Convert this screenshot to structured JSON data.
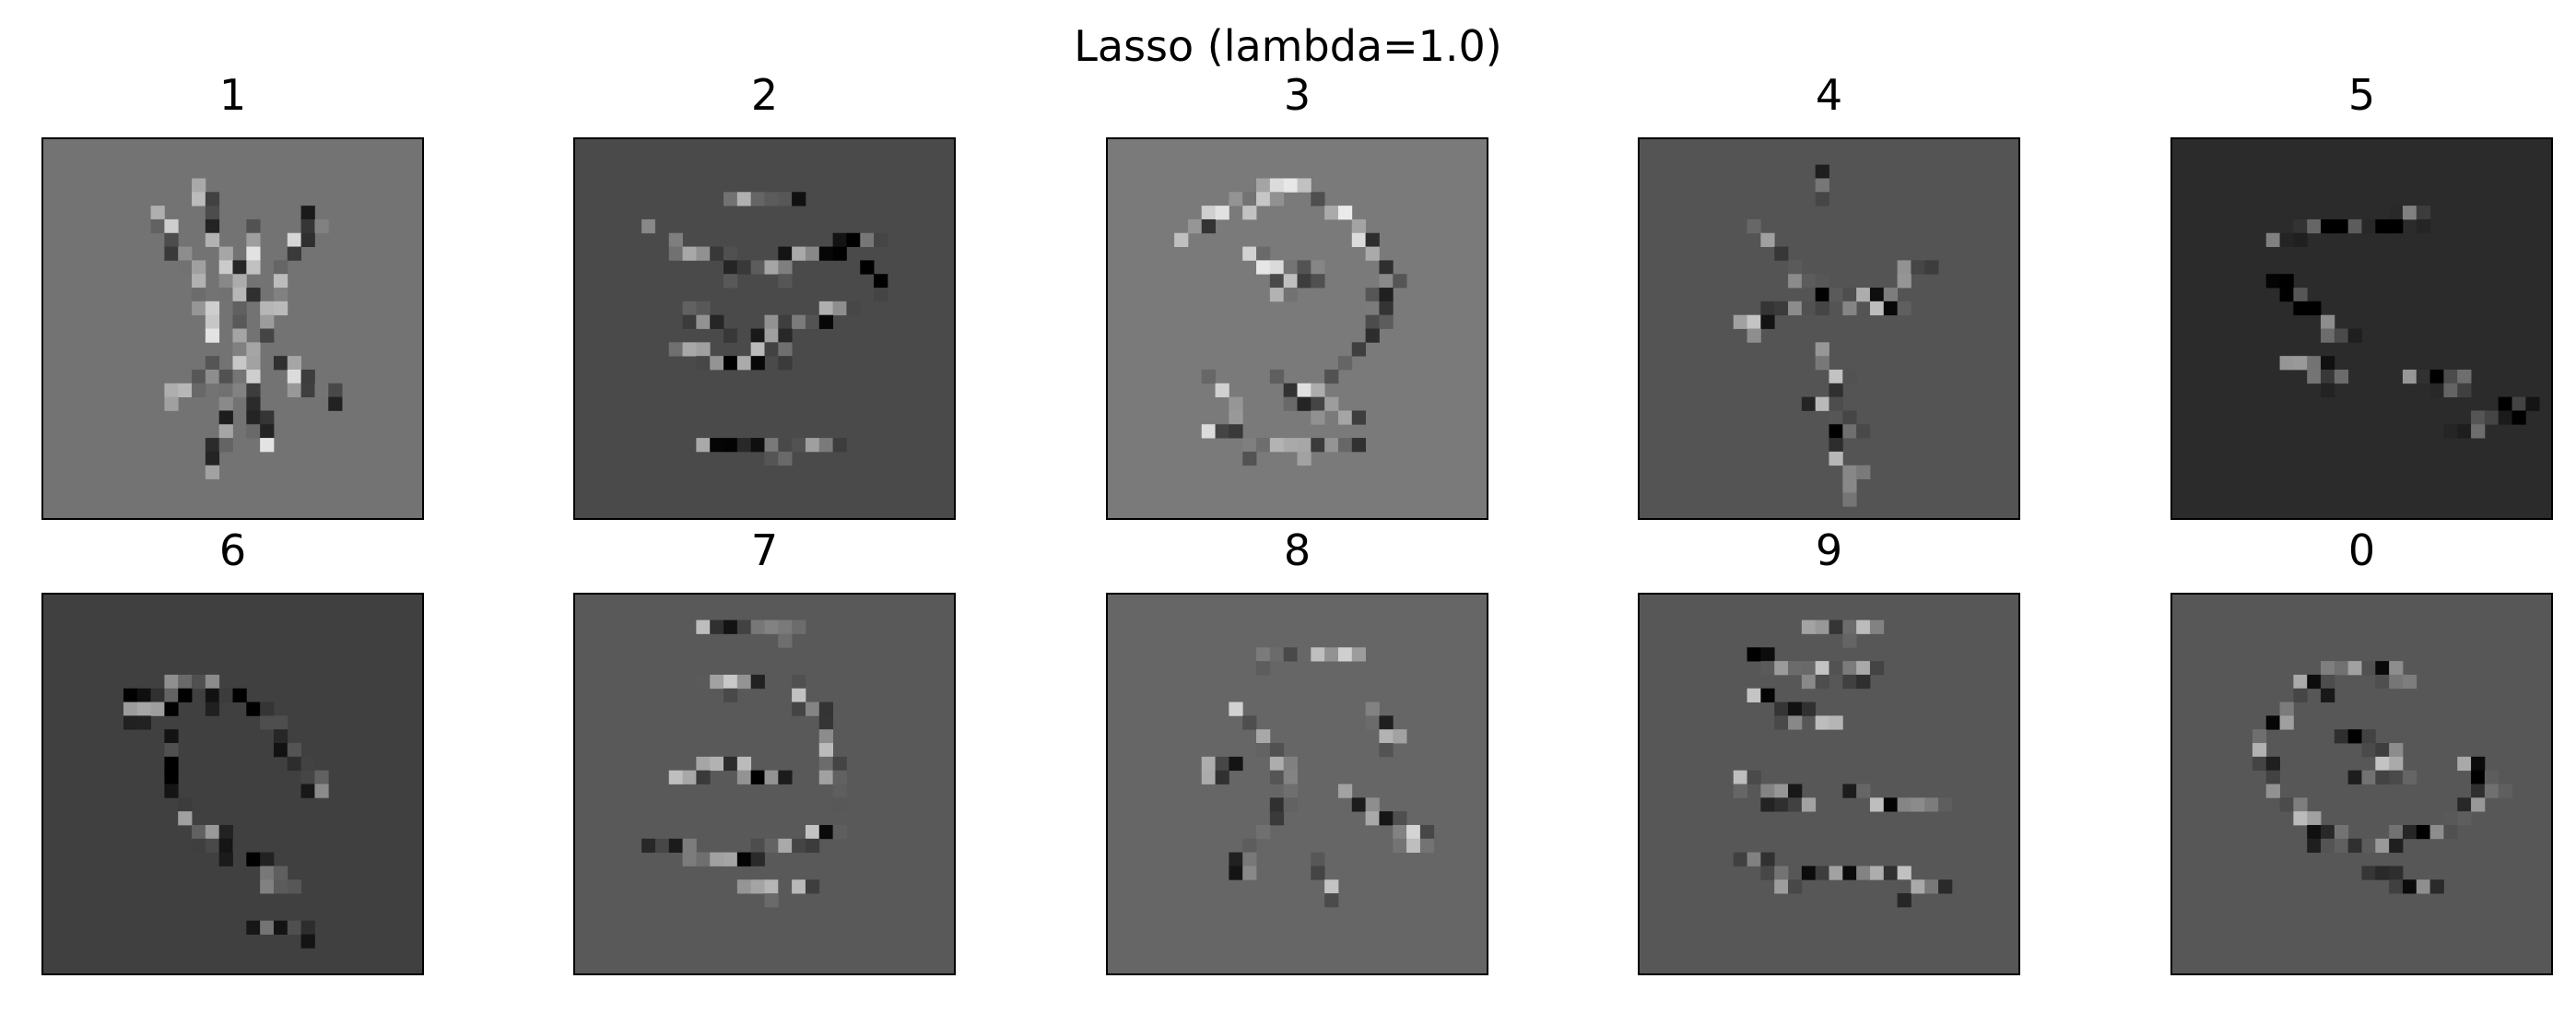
{
  "title": "Lasso (lambda=1.0)",
  "chart_data": {
    "type": "heatmap",
    "colormap": "gray",
    "grid": false,
    "axes": "hidden",
    "panels": [
      {
        "title": "1",
        "background": 0.45
      },
      {
        "title": "2",
        "background": 0.29
      },
      {
        "title": "3",
        "background": 0.48
      },
      {
        "title": "4",
        "background": 0.33
      },
      {
        "title": "5",
        "background": 0.17
      },
      {
        "title": "6",
        "background": 0.25
      },
      {
        "title": "7",
        "background": 0.35
      },
      {
        "title": "8",
        "background": 0.4
      },
      {
        "title": "9",
        "background": 0.34
      },
      {
        "title": "0",
        "background": 0.34
      }
    ]
  }
}
